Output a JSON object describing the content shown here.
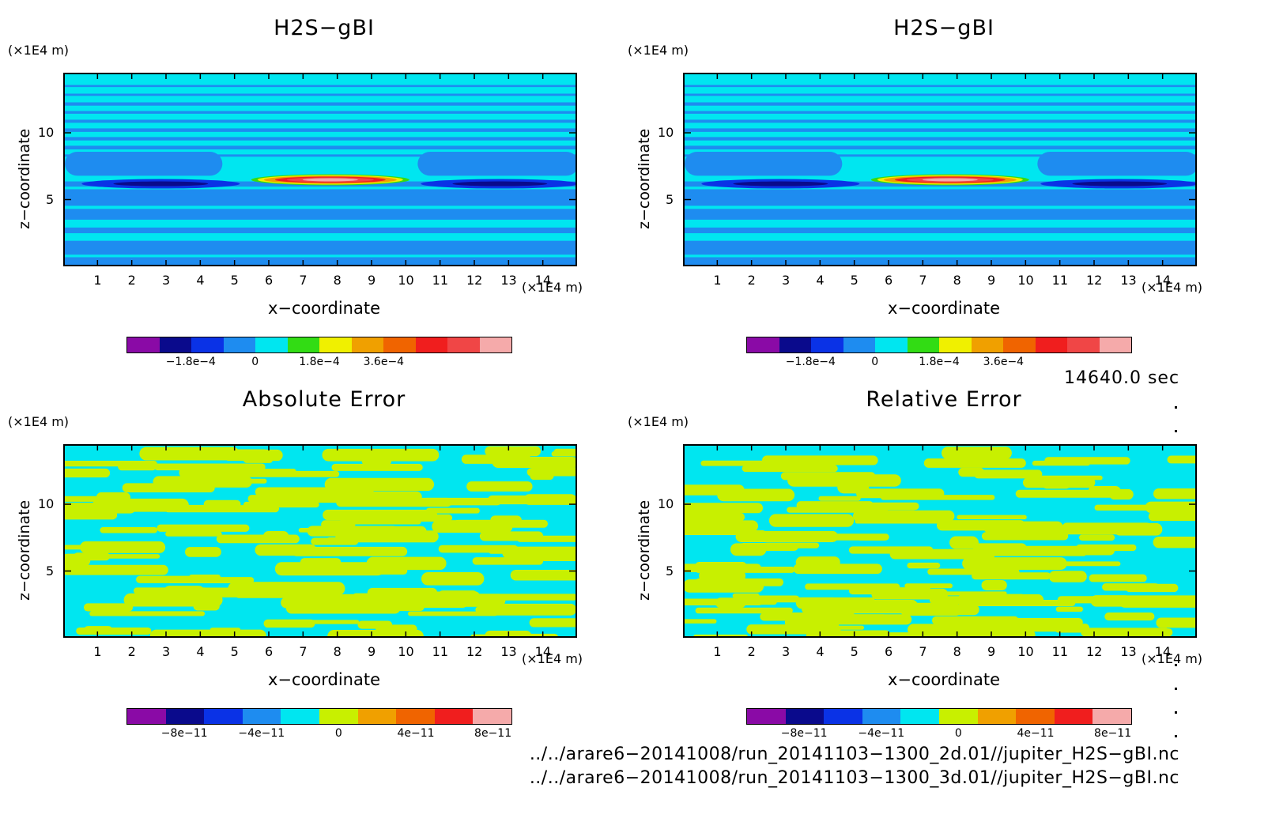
{
  "chart_data": [
    {
      "type": "heatmap",
      "title": "H2S−gBI",
      "xlabel": "x−coordinate",
      "ylabel": "z−coordinate",
      "x_unit": "(×1E4 m)",
      "y_unit": "(×1E4 m)",
      "xlim": [
        0,
        15
      ],
      "ylim": [
        0,
        14.5
      ],
      "xticks": [
        "1",
        "2",
        "3",
        "4",
        "5",
        "6",
        "7",
        "8",
        "9",
        "10",
        "11",
        "12",
        "13",
        "14"
      ],
      "yticks": [
        "5",
        "10"
      ],
      "colorbar": {
        "colors": [
          "#8a0aa6",
          "#0a0a8c",
          "#0a32e6",
          "#1e8cf0",
          "#00e6f0",
          "#32dc14",
          "#f0f000",
          "#f0a000",
          "#f06400",
          "#f01e1e",
          "#f04646",
          "#f5aaaa"
        ],
        "labels": [
          "−1.8e−4",
          "0",
          "1.8e−4",
          "3.6e−4"
        ]
      }
    },
    {
      "type": "heatmap",
      "title": "H2S−gBI",
      "xlabel": "x−coordinate",
      "ylabel": "z−coordinate",
      "x_unit": "(×1E4 m)",
      "y_unit": "(×1E4 m)",
      "xlim": [
        0,
        15
      ],
      "ylim": [
        0,
        14.5
      ],
      "xticks": [
        "1",
        "2",
        "3",
        "4",
        "5",
        "6",
        "7",
        "8",
        "9",
        "10",
        "11",
        "12",
        "13",
        "14"
      ],
      "yticks": [
        "5",
        "10"
      ],
      "colorbar": {
        "colors": [
          "#8a0aa6",
          "#0a0a8c",
          "#0a32e6",
          "#1e8cf0",
          "#00e6f0",
          "#32dc14",
          "#f0f000",
          "#f0a000",
          "#f06400",
          "#f01e1e",
          "#f04646",
          "#f5aaaa"
        ],
        "labels": [
          "−1.8e−4",
          "0",
          "1.8e−4",
          "3.6e−4"
        ]
      }
    },
    {
      "type": "heatmap",
      "title": "Absolute Error",
      "xlabel": "x−coordinate",
      "ylabel": "z−coordinate",
      "x_unit": "(×1E4 m)",
      "y_unit": "(×1E4 m)",
      "xlim": [
        0,
        15
      ],
      "ylim": [
        0,
        14.5
      ],
      "xticks": [
        "1",
        "2",
        "3",
        "4",
        "5",
        "6",
        "7",
        "8",
        "9",
        "10",
        "11",
        "12",
        "13",
        "14"
      ],
      "yticks": [
        "5",
        "10"
      ],
      "colorbar": {
        "colors": [
          "#8a0aa6",
          "#0a0a8c",
          "#0a32e6",
          "#1e8cf0",
          "#00e6f0",
          "#c8f000",
          "#f0a000",
          "#f06400",
          "#f01e1e",
          "#f5aaaa"
        ],
        "labels": [
          "−8e−11",
          "−4e−11",
          "0",
          "4e−11",
          "8e−11"
        ]
      }
    },
    {
      "type": "heatmap",
      "title": "Relative Error",
      "xlabel": "x−coordinate",
      "ylabel": "z−coordinate",
      "x_unit": "(×1E4 m)",
      "y_unit": "(×1E4 m)",
      "xlim": [
        0,
        15
      ],
      "ylim": [
        0,
        14.5
      ],
      "xticks": [
        "1",
        "2",
        "3",
        "4",
        "5",
        "6",
        "7",
        "8",
        "9",
        "10",
        "11",
        "12",
        "13",
        "14"
      ],
      "yticks": [
        "5",
        "10"
      ],
      "colorbar": {
        "colors": [
          "#8a0aa6",
          "#0a0a8c",
          "#0a32e6",
          "#1e8cf0",
          "#00e6f0",
          "#c8f000",
          "#f0a000",
          "#f06400",
          "#f01e1e",
          "#f5aaaa"
        ],
        "labels": [
          "−8e−11",
          "−4e−11",
          "0",
          "4e−11",
          "8e−11"
        ]
      }
    }
  ],
  "time_label": "14640.0 sec",
  "footer": [
    "../../arare6−20141008/run_20141103−1300_2d.01//jupiter_H2S−gBI.nc",
    "../../arare6−20141008/run_20141103−1300_3d.01//jupiter_H2S−gBI.nc"
  ]
}
